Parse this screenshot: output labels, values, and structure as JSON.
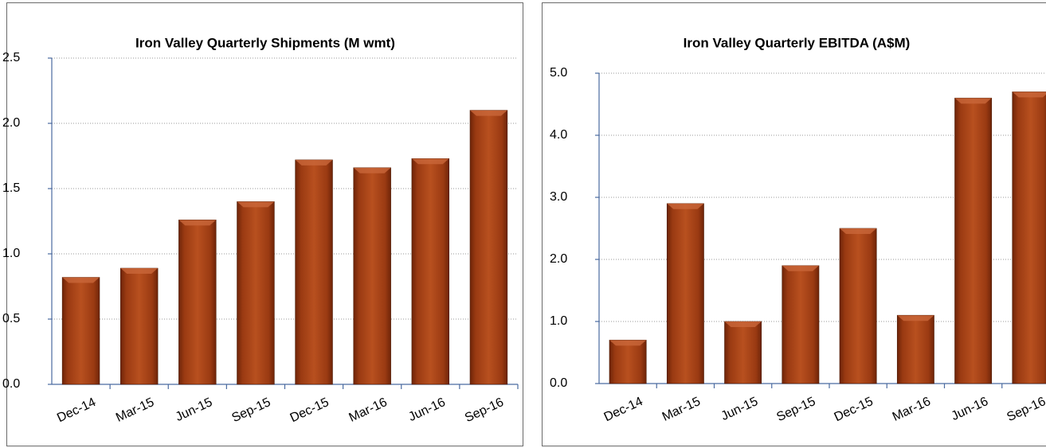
{
  "chart_data": [
    {
      "type": "bar",
      "title": "Iron Valley Quarterly Shipments (M wmt)",
      "categories": [
        "Dec-14",
        "Mar-15",
        "Jun-15",
        "Sep-15",
        "Dec-15",
        "Mar-16",
        "Jun-16",
        "Sep-16"
      ],
      "values": [
        0.82,
        0.89,
        1.26,
        1.4,
        1.72,
        1.66,
        1.73,
        2.1
      ],
      "color": "#a33e14",
      "grid": true,
      "ylim": [
        0,
        2.5
      ],
      "yticks": [
        {
          "value": 0,
          "label": "0.0"
        },
        0.5,
        {
          "value": 1,
          "label": "1.0"
        },
        1.5,
        {
          "value": 2,
          "label": "2.0"
        },
        2.5
      ]
    },
    {
      "type": "bar",
      "title": "Iron Valley Quarterly EBITDA (A$M)",
      "categories": [
        "Dec-14",
        "Mar-15",
        "Jun-15",
        "Sep-15",
        "Dec-15",
        "Mar-16",
        "Jun-16",
        "Sep-16"
      ],
      "values": [
        0.7,
        2.9,
        1.0,
        1.9,
        2.5,
        1.1,
        4.6,
        4.7
      ],
      "color": "#a33e14",
      "grid": true,
      "ylim": [
        0,
        5
      ],
      "yticks": [
        {
          "value": 0,
          "label": "0.0"
        },
        {
          "value": 1,
          "label": "1.0"
        },
        {
          "value": 2,
          "label": "2.0"
        },
        {
          "value": 3,
          "label": "3.0"
        },
        {
          "value": 4,
          "label": "4.0"
        },
        {
          "value": 5,
          "label": "5.0"
        }
      ]
    }
  ]
}
